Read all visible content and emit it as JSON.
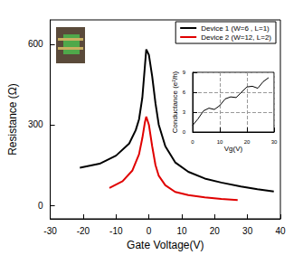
{
  "chart_data": [
    {
      "type": "line",
      "x_label": "Gate Voltage(V)",
      "y_label": "Resistance (Ω)",
      "xlim": [
        -30,
        40
      ],
      "xticks": [
        -30,
        -20,
        -10,
        0,
        10,
        20,
        30,
        40
      ],
      "ylim": [
        -50,
        690
      ],
      "yticks": [
        0,
        300,
        600
      ],
      "grid": false,
      "legend": "upper right",
      "marker": "none",
      "line_style": "solid",
      "series": [
        {
          "name": "Device 1 (W=6 , L=1)",
          "color": "#000000",
          "x": [
            -21,
            -15,
            -10,
            -6,
            -4,
            -3,
            -2,
            -1.2,
            -0.8,
            0,
            1,
            2,
            3,
            5,
            8,
            12,
            17,
            22,
            28,
            33,
            38
          ],
          "values": [
            140,
            155,
            185,
            230,
            280,
            320,
            400,
            520,
            580,
            560,
            480,
            380,
            300,
            220,
            160,
            125,
            100,
            85,
            70,
            60,
            52
          ]
        },
        {
          "name": "Device 2 (W=12, L=2)",
          "color": "#e00000",
          "x": [
            -12,
            -8,
            -5,
            -3,
            -2,
            -1.2,
            -0.8,
            0,
            1,
            2,
            3,
            5,
            8,
            12,
            17,
            22,
            27
          ],
          "values": [
            65,
            90,
            130,
            190,
            250,
            310,
            330,
            300,
            220,
            150,
            110,
            75,
            50,
            38,
            30,
            24,
            20
          ]
        }
      ]
    },
    {
      "type": "line",
      "x_label": "Vg(V)",
      "y_label": "Conductance (e²/h)",
      "xlim": [
        0,
        30
      ],
      "xticks": [
        0,
        10,
        20,
        30
      ],
      "ylim": [
        0,
        9
      ],
      "yticks": [
        0,
        3,
        6,
        9
      ],
      "grid": true,
      "marker": "none",
      "line_style": "solid",
      "series": [
        {
          "color": "#000000",
          "x": [
            0,
            2,
            4,
            6,
            8,
            10,
            12,
            14,
            16,
            18,
            20,
            22,
            24,
            26,
            28
          ],
          "values": [
            1.0,
            2.0,
            3.2,
            3.6,
            3.4,
            4.0,
            5.0,
            5.3,
            5.2,
            6.0,
            6.8,
            6.9,
            6.6,
            7.6,
            8.2
          ]
        }
      ]
    }
  ]
}
